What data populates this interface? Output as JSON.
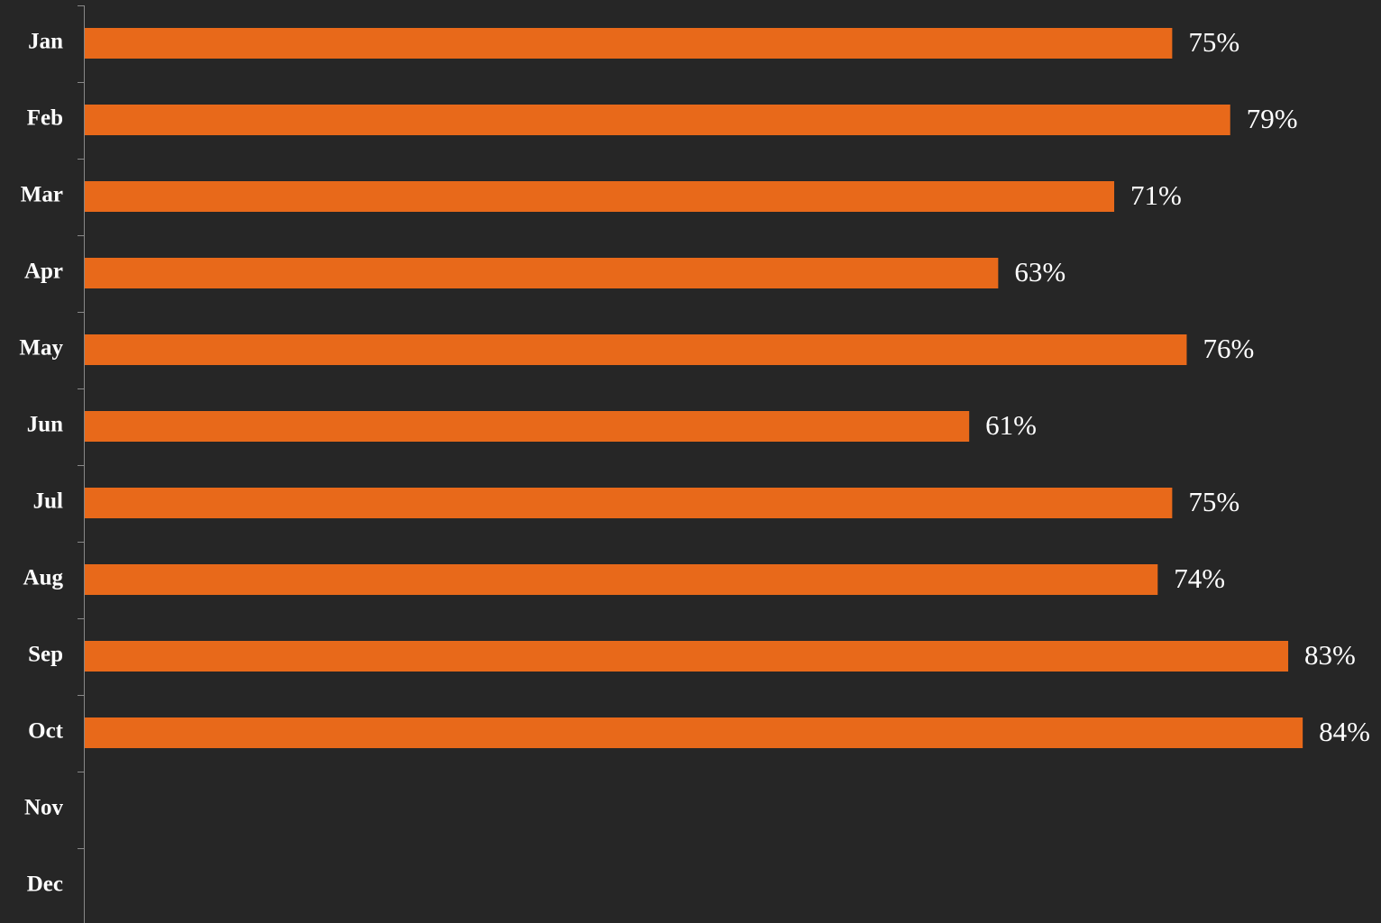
{
  "chart_data": {
    "type": "barh",
    "categories": [
      "Jan",
      "Feb",
      "Mar",
      "Apr",
      "May",
      "Jun",
      "Jul",
      "Aug",
      "Sep",
      "Oct",
      "Nov",
      "Dec"
    ],
    "values": [
      75,
      79,
      71,
      63,
      76,
      61,
      75,
      74,
      83,
      84,
      null,
      null
    ],
    "value_labels": [
      "75%",
      "79%",
      "71%",
      "63%",
      "76%",
      "61%",
      "75%",
      "74%",
      "83%",
      "84%",
      null,
      null
    ],
    "color": "#e8691a",
    "xlim": [
      0,
      89.4
    ]
  }
}
